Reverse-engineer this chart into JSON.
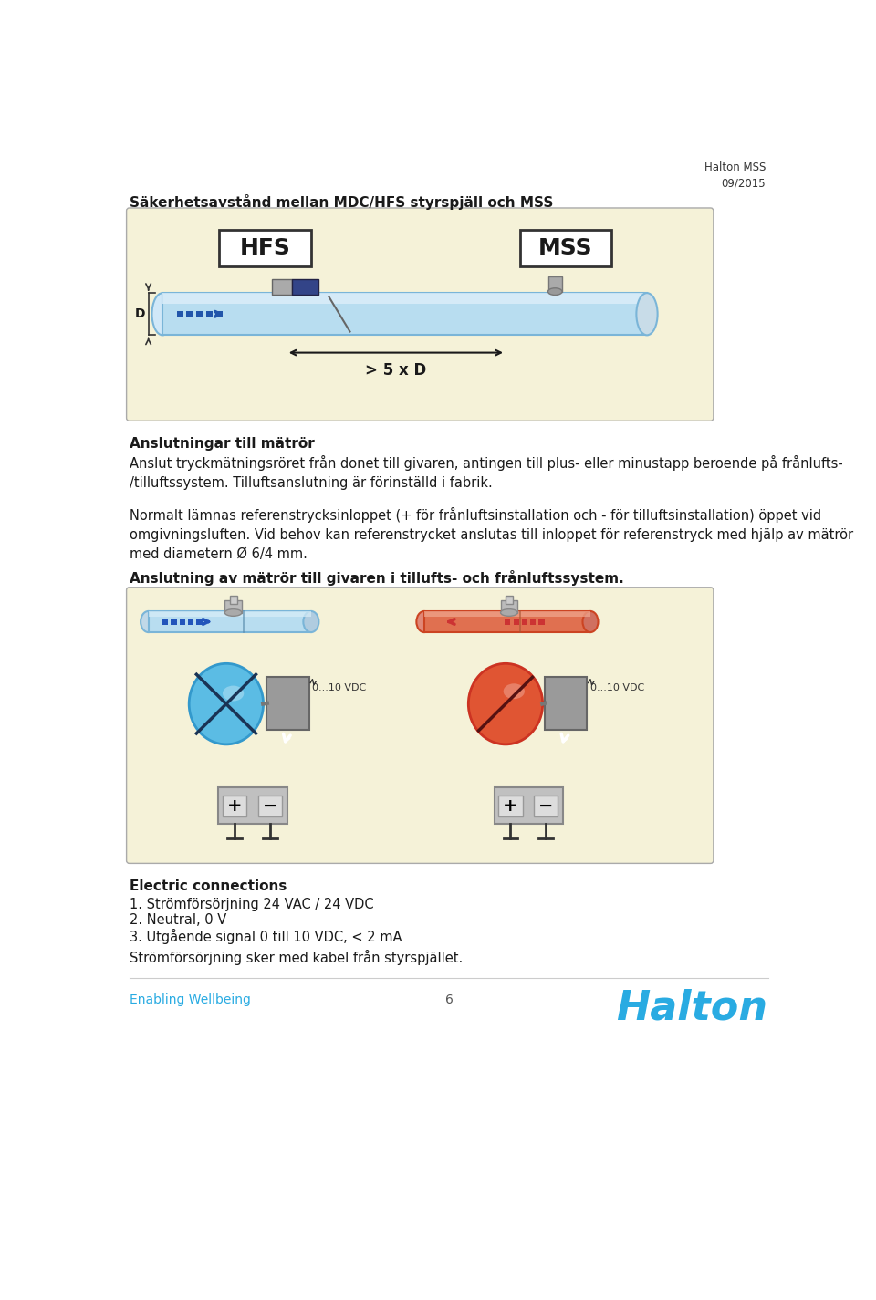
{
  "header_right": "Halton MSS\n09/2015",
  "title": "Säkerhetsavstånd mellan MDC/HFS styrspjäll och MSS",
  "box_bg": "#f5f2d8",
  "section1_title": "Anslutningar till mätrör",
  "section1_body": "Anslut tryckmätningsröret från donet till givaren, antingen till plus- eller minustapp beroende på frånlufts-\n/tilluftssystem. Tilluftsanslutning är förinställd i fabrik.",
  "section2_body": "Normalt lämnas referenstrycksinloppet (+ för frånluftsinstallation och - för tilluftsinstallation) öppet vid\nomgivningsluften. Vid behov kan referenstrycket anslutas till inloppet för referenstryck med hjälp av mätrör\nmed diametern Ø 6/4 mm.",
  "section3_title": "Anslutning av mätrör till givaren i tillufts- och frånluftssystem.",
  "section4_title": "Electric connections",
  "section4_items": [
    "1. Strömförsörjning 24 VAC / 24 VDC",
    "2. Neutral, 0 V",
    "3. Utgående signal 0 till 10 VDC, < 2 mA"
  ],
  "section4_body": "Strömförsörjning sker med kabel från styrspjället.",
  "footer_left": "Enabling Wellbeing",
  "footer_center": "6",
  "footer_right": "Halton",
  "bg_color": "#ffffff",
  "text_color": "#1a1a1a",
  "blue_color": "#5bbce4",
  "blue_light": "#aaddf5",
  "halton_blue": "#29abe2",
  "red_color": "#e05533",
  "red_light": "#f0a090",
  "pipe_blue_main": "#b8ddf0",
  "pipe_blue_dark": "#7ab5d8",
  "pipe_red_main": "#e07050",
  "sensor_gray": "#9a9a9a",
  "terminal_gray": "#c0c0c0",
  "terminal_dark": "#888888"
}
